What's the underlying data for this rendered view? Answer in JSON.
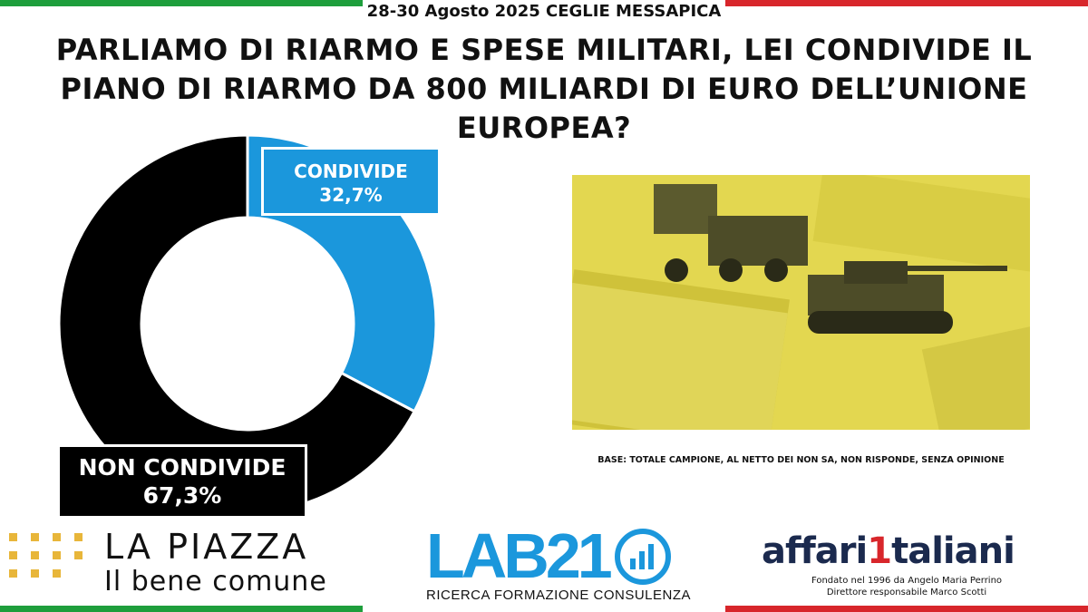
{
  "header": {
    "event": "28-30 Agosto 2025 CEGLIE MESSAPICA",
    "question": "PARLIAMO DI RIARMO E SPESE MILITARI, LEI CONDIVIDE IL PIANO DI RIARMO DA 800 MILIARDI DI EURO DELL’UNIONE EUROPEA?"
  },
  "chart_data": {
    "type": "pie",
    "donut": true,
    "categories": [
      "CONDIVIDE",
      "NON CONDIVIDE"
    ],
    "values": [
      32.7,
      67.3
    ],
    "value_labels": [
      "32,7%",
      "67,3%"
    ],
    "colors": [
      "#1b97dc",
      "#000000"
    ]
  },
  "note": {
    "base": "BASE: TOTALE CAMPIONE, AL NETTO DEI  NON SA, NON  RISPONDE, SENZA OPINIONE"
  },
  "photo": {
    "icon": "military-vehicles-and-dollars-photo",
    "tint": "#e6dc55"
  },
  "logos": {
    "lapiazza": {
      "title": "LA PIAZZA",
      "subtitle": "Il bene comune"
    },
    "lab21": {
      "name": "LAB21",
      "subtitle": "RICERCA FORMAZIONE CONSULENZA"
    },
    "affaritaliani": {
      "name_part1": "affari",
      "name_part2": "1",
      "name_part3": "taliani",
      "line1": "Fondato nel 1996 da Angelo Maria Perrino",
      "line2": "Direttore responsabile Marco Scotti"
    }
  },
  "colors": {
    "green": "#1e9e3c",
    "red": "#d8262b",
    "blue": "#1b97dc"
  }
}
